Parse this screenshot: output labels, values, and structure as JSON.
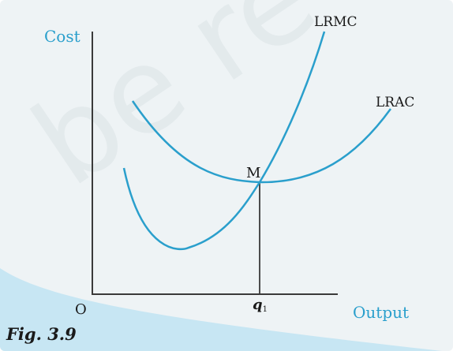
{
  "colors": {
    "curve": "#2a9fcc",
    "axis_label": "#2a9fcc",
    "axis_line": "#3a3a3a",
    "text": "#1a1a1a",
    "panel": "#eef3f5",
    "wedge": "#c7e6f3",
    "watermark": "#e0e7ea"
  },
  "diagram": {
    "y_axis_label": "Cost",
    "x_axis_label": "Output",
    "origin_label": "O",
    "point_label": "M",
    "quantity_label": "q",
    "quantity_subscript": "1",
    "curves": [
      {
        "name": "LRMC",
        "shape": "U-shaped, steeply rising, passes through minimum of LRAC"
      },
      {
        "name": "LRAC",
        "shape": "U-shaped, minimum at M"
      }
    ],
    "watermark": "be re"
  },
  "caption": "Fig. 3.9"
}
